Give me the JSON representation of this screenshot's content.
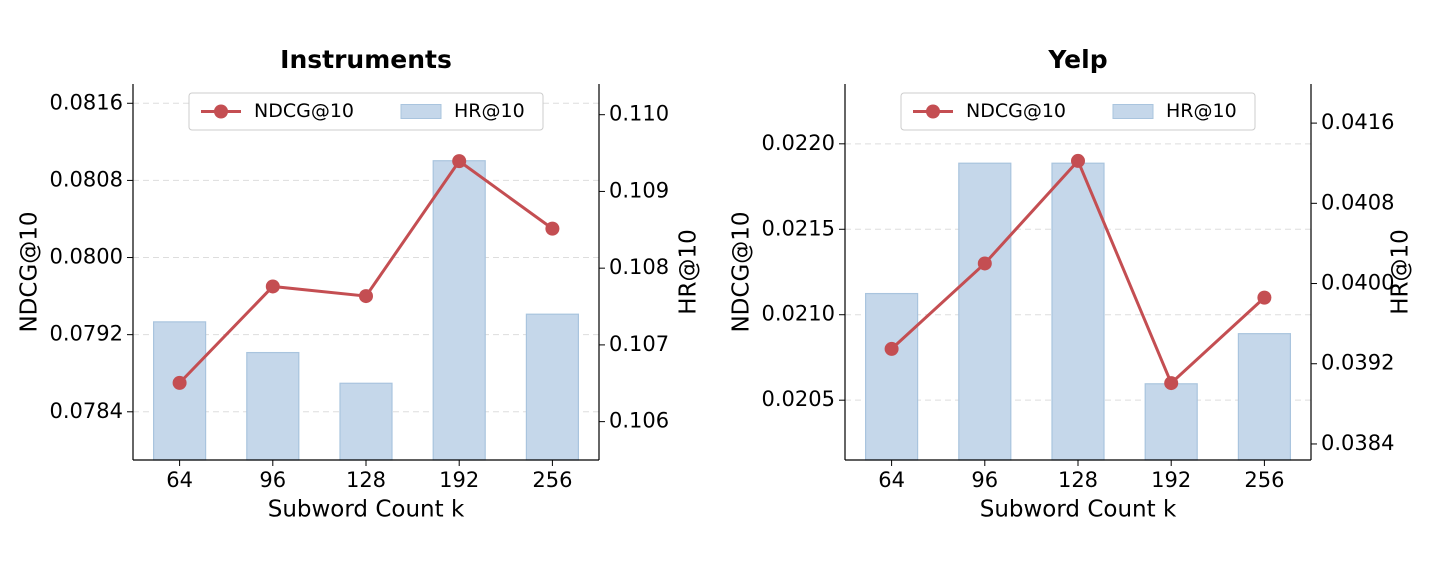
{
  "chart_data": [
    {
      "type": "combo",
      "title": "Instruments",
      "x_label": "Subword Count k",
      "y_label": "NDCG@10",
      "y2_label": "HR@10",
      "categories": [
        "64",
        "96",
        "128",
        "192",
        "256"
      ],
      "series": [
        {
          "name": "NDCG@10",
          "type": "line",
          "color": "#c44e52",
          "axis": "y",
          "values": [
            0.0787,
            0.0797,
            0.0796,
            0.081,
            0.0803
          ]
        },
        {
          "name": "HR@10",
          "type": "bar",
          "color": "#c5d7ea",
          "axis": "y2",
          "values": [
            0.1073,
            0.1069,
            0.1065,
            0.1094,
            0.1074
          ]
        }
      ],
      "ylim": [
        0.0779,
        0.0818
      ],
      "yticks": [
        0.0784,
        0.0792,
        {
          "value": 0.08,
          "label": "0.0800"
        },
        0.0808,
        0.0816
      ],
      "y2lim": [
        0.1055,
        0.1104
      ],
      "y2ticks": [
        0.106,
        0.107,
        0.108,
        0.109,
        {
          "value": 0.11,
          "label": "0.110"
        }
      ],
      "grid": true,
      "legend": "upper center"
    },
    {
      "type": "combo",
      "title": "Yelp",
      "x_label": "Subword Count k",
      "y_label": "NDCG@10",
      "y2_label": "HR@10",
      "categories": [
        "64",
        "96",
        "128",
        "192",
        "256"
      ],
      "series": [
        {
          "name": "NDCG@10",
          "type": "line",
          "color": "#c44e52",
          "axis": "y",
          "values": [
            0.0208,
            0.0213,
            0.0219,
            0.0206,
            0.0211
          ]
        },
        {
          "name": "HR@10",
          "type": "bar",
          "color": "#c5d7ea",
          "axis": "y2",
          "values": [
            0.0399,
            0.0412,
            0.0412,
            0.039,
            0.0395
          ]
        }
      ],
      "ylim": [
        0.02015,
        0.02235
      ],
      "yticks": [
        0.0205,
        {
          "value": 0.021,
          "label": "0.0210"
        },
        0.0215,
        {
          "value": 0.022,
          "label": "0.0220"
        }
      ],
      "y2lim": [
        0.03824,
        0.04199
      ],
      "y2ticks": [
        0.0384,
        0.0392,
        {
          "value": 0.04,
          "label": "0.0400"
        },
        0.0408,
        0.0416
      ],
      "grid": true,
      "legend": "upper center"
    }
  ]
}
